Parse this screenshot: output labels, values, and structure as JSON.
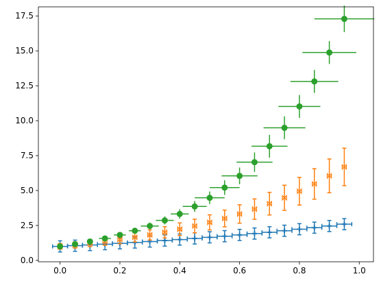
{
  "chart_data": {
    "type": "scatter",
    "title": "",
    "xlabel": "",
    "ylabel": "",
    "xlim": [
      -0.0725,
      1.0475
    ],
    "ylim": [
      -0.1,
      18.15
    ],
    "xticks": [
      0.0,
      0.2,
      0.4,
      0.6,
      0.8,
      1.0
    ],
    "xtick_labels": [
      "0.0",
      "0.2",
      "0.4",
      "0.6",
      "0.8",
      "1.0"
    ],
    "yticks": [
      0.0,
      2.5,
      5.0,
      7.5,
      10.0,
      12.5,
      15.0,
      17.5
    ],
    "ytick_labels": [
      "0.0",
      "2.5",
      "5.0",
      "7.5",
      "10.0",
      "12.5",
      "15.0",
      "17.5"
    ],
    "grid": false,
    "legend": "none",
    "x": [
      0.0,
      0.05,
      0.1,
      0.15,
      0.2,
      0.25,
      0.3,
      0.35,
      0.4,
      0.45,
      0.5,
      0.55,
      0.6,
      0.65,
      0.7,
      0.75,
      0.8,
      0.85,
      0.9,
      0.95
    ],
    "series": [
      {
        "color": "#1f77b4",
        "marker": "plus",
        "y": [
          1.0,
          1.05,
          1.1,
          1.16,
          1.22,
          1.28,
          1.35,
          1.42,
          1.49,
          1.57,
          1.65,
          1.73,
          1.82,
          1.92,
          2.01,
          2.12,
          2.23,
          2.34,
          2.46,
          2.59
        ],
        "xerr": [
          0.025,
          0.025,
          0.025,
          0.025,
          0.025,
          0.025,
          0.025,
          0.025,
          0.025,
          0.025,
          0.025,
          0.025,
          0.025,
          0.025,
          0.025,
          0.025,
          0.025,
          0.025,
          0.025,
          0.025
        ],
        "yerr": [
          0.4,
          0.4,
          0.4,
          0.4,
          0.4,
          0.4,
          0.4,
          0.4,
          0.4,
          0.4,
          0.4,
          0.4,
          0.4,
          0.4,
          0.4,
          0.4,
          0.4,
          0.4,
          0.4,
          0.4
        ]
      },
      {
        "color": "#ff7f0e",
        "marker": "bowtie",
        "y": [
          1.0,
          1.1,
          1.22,
          1.35,
          1.49,
          1.65,
          1.82,
          2.01,
          2.23,
          2.46,
          2.72,
          3.0,
          3.32,
          3.67,
          4.06,
          4.48,
          4.95,
          5.47,
          6.05,
          6.69
        ],
        "xerr": [
          0,
          0,
          0,
          0,
          0,
          0,
          0,
          0,
          0,
          0,
          0,
          0,
          0,
          0,
          0,
          0,
          0,
          0,
          0,
          0
        ],
        "yerr": [
          0.2,
          0.22,
          0.24,
          0.27,
          0.3,
          0.33,
          0.36,
          0.4,
          0.45,
          0.49,
          0.54,
          0.6,
          0.66,
          0.73,
          0.81,
          0.9,
          0.99,
          1.09,
          1.21,
          1.34
        ]
      },
      {
        "color": "#2ca02c",
        "marker": "circle",
        "y": [
          1.0,
          1.16,
          1.35,
          1.57,
          1.82,
          2.12,
          2.46,
          2.86,
          3.32,
          3.86,
          4.48,
          5.21,
          6.05,
          7.03,
          8.17,
          9.49,
          11.02,
          12.81,
          14.88,
          17.29
        ],
        "xerr": [
          0.01,
          0.01,
          0.01,
          0.02,
          0.02,
          0.02,
          0.03,
          0.03,
          0.03,
          0.04,
          0.05,
          0.05,
          0.06,
          0.06,
          0.06,
          0.07,
          0.07,
          0.08,
          0.09,
          0.1
        ],
        "yerr": [
          0.1,
          0.12,
          0.14,
          0.16,
          0.18,
          0.21,
          0.25,
          0.29,
          0.33,
          0.39,
          0.45,
          0.52,
          0.6,
          0.7,
          0.82,
          0.82,
          0.82,
          0.82,
          0.82,
          0.95
        ]
      }
    ]
  }
}
